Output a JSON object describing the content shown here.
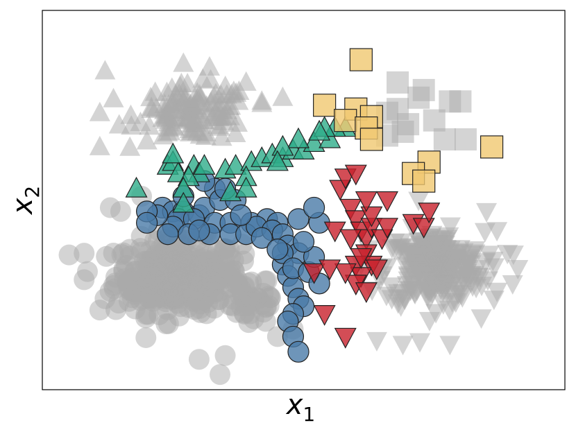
{
  "chart_data": {
    "type": "scatter",
    "title": "",
    "xlabel": {
      "symbol": "x",
      "subscript": "1"
    },
    "ylabel": {
      "symbol": "x",
      "subscript": "2"
    },
    "xlim": [
      0,
      10
    ],
    "ylim": [
      0,
      10
    ],
    "ticks_shown": false,
    "grid": false,
    "legend": "none",
    "colors": {
      "background_points": "#aaaaaa",
      "circle_series": "#4a7aa8",
      "triangle_up_series": "#2eac8a",
      "triangle_down_series": "#c8202c",
      "square_series": "#f0c870",
      "marker_edge": "#222222"
    },
    "background": [
      {
        "marker": "circle",
        "clusters": [
          {
            "cx": 2.6,
            "cy": 3.0,
            "sx": 1.0,
            "sy": 0.8,
            "count": 340
          },
          {
            "cx": 4.0,
            "cy": 2.4,
            "sx": 0.5,
            "sy": 0.6,
            "count": 40
          }
        ],
        "points": [
          [
            0.8,
            3.6
          ],
          [
            0.8,
            2.9
          ],
          [
            1.2,
            2.4
          ],
          [
            1.3,
            4.8
          ],
          [
            1.5,
            4.7
          ],
          [
            1.9,
            5.1
          ],
          [
            3.4,
            0.4
          ],
          [
            3.5,
            0.9
          ],
          [
            4.5,
            1.4
          ],
          [
            4.8,
            1.6
          ],
          [
            1.1,
            2.1
          ],
          [
            3.0,
            0.8
          ]
        ]
      },
      {
        "marker": "triangle-up",
        "clusters": [
          {
            "cx": 2.9,
            "cy": 7.3,
            "sx": 0.9,
            "sy": 0.6,
            "count": 120
          }
        ],
        "points": [
          [
            1.2,
            8.4
          ],
          [
            2.7,
            8.6
          ],
          [
            3.2,
            8.5
          ],
          [
            1.1,
            7.3
          ],
          [
            1.1,
            6.4
          ],
          [
            4.2,
            7.6
          ],
          [
            4.6,
            7.7
          ],
          [
            3.9,
            8.1
          ]
        ]
      },
      {
        "marker": "triangle-down",
        "clusters": [
          {
            "cx": 7.5,
            "cy": 3.2,
            "sx": 0.8,
            "sy": 0.8,
            "count": 260
          }
        ],
        "points": [
          [
            8.5,
            4.7
          ],
          [
            8.7,
            4.2
          ],
          [
            8.9,
            3.6
          ],
          [
            9.1,
            3.2
          ],
          [
            8.4,
            1.9
          ],
          [
            7.8,
            1.2
          ],
          [
            6.4,
            1.3
          ],
          [
            6.9,
            1.2
          ],
          [
            8.7,
            2.6
          ],
          [
            9.0,
            2.8
          ],
          [
            7.2,
            5.0
          ]
        ]
      },
      {
        "marker": "square",
        "clusters": [],
        "points": [
          [
            6.8,
            8.1
          ],
          [
            7.3,
            7.9
          ],
          [
            7.8,
            7.6
          ],
          [
            6.8,
            7.4
          ],
          [
            6.6,
            7.3
          ],
          [
            7.0,
            7.0
          ],
          [
            7.5,
            7.1
          ],
          [
            7.7,
            6.6
          ],
          [
            8.1,
            6.6
          ],
          [
            8.0,
            7.6
          ],
          [
            7.2,
            7.7
          ],
          [
            6.9,
            6.8
          ],
          [
            6.6,
            6.7
          ]
        ]
      }
    ],
    "series": [
      {
        "marker": "circle",
        "color": "#4a7aa8",
        "points": [
          [
            2.3,
            4.8
          ],
          [
            2.5,
            4.7
          ],
          [
            2.7,
            4.7
          ],
          [
            3.0,
            4.6
          ],
          [
            3.1,
            4.8
          ],
          [
            2.6,
            4.5
          ],
          [
            2.9,
            4.5
          ],
          [
            3.3,
            4.4
          ],
          [
            3.6,
            4.4
          ],
          [
            4.0,
            4.4
          ],
          [
            4.3,
            4.5
          ],
          [
            4.5,
            4.4
          ],
          [
            3.3,
            5.3
          ],
          [
            3.1,
            5.5
          ],
          [
            3.4,
            5.0
          ],
          [
            3.7,
            5.0
          ],
          [
            2.5,
            4.3
          ],
          [
            2.2,
            4.6
          ],
          [
            2.0,
            4.7
          ],
          [
            2.4,
            4.1
          ],
          [
            2.8,
            4.1
          ],
          [
            3.2,
            4.1
          ],
          [
            3.6,
            4.1
          ],
          [
            3.9,
            4.1
          ],
          [
            4.1,
            4.3
          ],
          [
            4.4,
            4.2
          ],
          [
            4.6,
            4.1
          ],
          [
            4.7,
            3.8
          ],
          [
            4.9,
            3.6
          ],
          [
            4.6,
            3.3
          ],
          [
            4.7,
            3.0
          ],
          [
            4.8,
            2.7
          ],
          [
            4.9,
            2.4
          ],
          [
            5.0,
            2.2
          ],
          [
            4.8,
            2.0
          ],
          [
            4.7,
            1.8
          ],
          [
            4.8,
            1.4
          ],
          [
            4.9,
            1.0
          ],
          [
            4.6,
            3.6
          ],
          [
            4.8,
            3.2
          ],
          [
            5.1,
            3.1
          ],
          [
            5.2,
            3.5
          ],
          [
            5.3,
            2.8
          ],
          [
            5.0,
            3.9
          ],
          [
            4.9,
            4.5
          ],
          [
            5.3,
            4.4
          ],
          [
            5.2,
            4.8
          ],
          [
            2.7,
            5.1
          ],
          [
            3.5,
            5.3
          ],
          [
            3.0,
            4.2
          ],
          [
            3.8,
            4.6
          ],
          [
            4.2,
            4.0
          ],
          [
            4.5,
            3.7
          ],
          [
            2.0,
            4.4
          ]
        ]
      },
      {
        "marker": "triangle-up",
        "color": "#2eac8a",
        "points": [
          [
            1.8,
            5.3
          ],
          [
            2.4,
            5.9
          ],
          [
            2.5,
            6.0
          ],
          [
            2.6,
            5.7
          ],
          [
            2.9,
            5.9
          ],
          [
            3.0,
            5.7
          ],
          [
            3.1,
            5.9
          ],
          [
            2.8,
            5.6
          ],
          [
            2.7,
            5.3
          ],
          [
            3.5,
            5.8
          ],
          [
            3.7,
            5.9
          ],
          [
            4.0,
            6.0
          ],
          [
            4.2,
            6.1
          ],
          [
            4.4,
            6.2
          ],
          [
            4.6,
            6.1
          ],
          [
            4.8,
            6.3
          ],
          [
            5.0,
            6.3
          ],
          [
            5.2,
            6.5
          ],
          [
            5.5,
            6.6
          ],
          [
            5.8,
            6.9
          ],
          [
            5.6,
            6.9
          ],
          [
            5.4,
            6.9
          ],
          [
            5.3,
            6.8
          ],
          [
            4.9,
            6.6
          ],
          [
            4.6,
            6.4
          ],
          [
            4.5,
            6.0
          ],
          [
            3.9,
            5.6
          ],
          [
            3.6,
            5.2
          ],
          [
            3.9,
            5.3
          ],
          [
            2.7,
            4.9
          ],
          [
            2.5,
            6.2
          ]
        ]
      },
      {
        "marker": "triangle-down",
        "color": "#c8202c",
        "points": [
          [
            5.7,
            5.3
          ],
          [
            5.8,
            5.6
          ],
          [
            6.0,
            5.7
          ],
          [
            5.9,
            4.8
          ],
          [
            6.0,
            4.5
          ],
          [
            6.1,
            4.2
          ],
          [
            6.2,
            4.0
          ],
          [
            6.3,
            4.3
          ],
          [
            6.5,
            4.0
          ],
          [
            6.2,
            3.6
          ],
          [
            6.3,
            3.3
          ],
          [
            6.0,
            3.3
          ],
          [
            6.1,
            3.0
          ],
          [
            6.4,
            3.2
          ],
          [
            6.0,
            2.8
          ],
          [
            5.6,
            4.2
          ],
          [
            5.9,
            4.0
          ],
          [
            5.8,
            3.1
          ],
          [
            6.2,
            2.6
          ],
          [
            6.6,
            4.3
          ],
          [
            6.3,
            4.6
          ],
          [
            6.6,
            5.0
          ],
          [
            6.2,
            5.0
          ],
          [
            7.1,
            4.4
          ],
          [
            7.3,
            4.3
          ],
          [
            7.4,
            4.7
          ],
          [
            5.2,
            3.1
          ],
          [
            5.5,
            3.2
          ],
          [
            5.4,
            2.0
          ],
          [
            5.8,
            1.4
          ],
          [
            6.1,
            3.5
          ]
        ]
      },
      {
        "marker": "square",
        "color": "#f0c870",
        "points": [
          [
            6.1,
            8.7
          ],
          [
            5.4,
            7.5
          ],
          [
            6.0,
            7.4
          ],
          [
            6.3,
            7.2
          ],
          [
            5.8,
            7.1
          ],
          [
            6.2,
            6.9
          ],
          [
            6.3,
            6.6
          ],
          [
            8.6,
            6.4
          ],
          [
            7.4,
            6.0
          ],
          [
            7.1,
            5.7
          ],
          [
            7.3,
            5.5
          ]
        ]
      }
    ]
  }
}
